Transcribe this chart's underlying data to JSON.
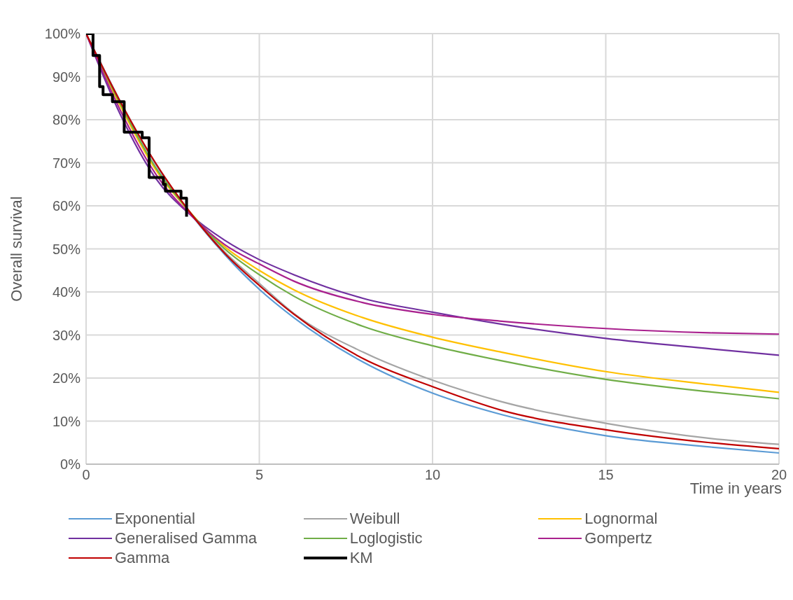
{
  "chart_data": {
    "type": "line",
    "xlabel": "Time in years",
    "ylabel": "Overall survival",
    "x": [
      0,
      1,
      2,
      3,
      4,
      5,
      6,
      8,
      10,
      12,
      15,
      18,
      20
    ],
    "series": [
      {
        "name": "Exponential",
        "color": "#5b9bd5",
        "values": [
          100,
          null,
          69.8,
          null,
          48.7,
          40.6,
          34,
          23.7,
          16.5,
          11.5,
          6.6,
          4,
          2.6
        ]
      },
      {
        "name": "Weibull",
        "color": "#a5a5a5",
        "values": [
          100,
          84,
          70,
          58.5,
          49.3,
          42,
          35,
          26,
          19.5,
          14.5,
          9.5,
          6,
          4.6
        ]
      },
      {
        "name": "Lognormal",
        "color": "#ffc000",
        "values": [
          100,
          83,
          68.5,
          58.5,
          50.5,
          45,
          40.5,
          34,
          29.5,
          26,
          21.5,
          18.5,
          16.7
        ]
      },
      {
        "name": "Generalised Gamma",
        "color": "#7030a0",
        "values": [
          100,
          81,
          66.5,
          58,
          52,
          47.5,
          44,
          38.5,
          35.3,
          32.5,
          29.2,
          26.8,
          25.3
        ]
      },
      {
        "name": "Loglogistic",
        "color": "#70ad47",
        "values": [
          100,
          83.5,
          69,
          58.5,
          50,
          44,
          39,
          32,
          27.5,
          24,
          19.7,
          16.8,
          15.2
        ]
      },
      {
        "name": "Gompertz",
        "color": "#a9218e",
        "values": [
          100,
          82,
          67.5,
          58,
          51,
          46.5,
          42.5,
          37.5,
          34.8,
          33.2,
          31.5,
          30.5,
          30.2
        ]
      },
      {
        "name": "Gamma",
        "color": "#c00000",
        "values": [
          100,
          84,
          70,
          58.5,
          49,
          41.5,
          34.8,
          24.5,
          18,
          12.5,
          8,
          5,
          3.6
        ]
      },
      {
        "name": "KM",
        "type": "step",
        "color": "#000000",
        "x": [
          0,
          0.2,
          0.39,
          0.49,
          0.76,
          1.1,
          1.62,
          1.82,
          2.23,
          2.29,
          2.74,
          2.9
        ],
        "values": [
          100,
          94.9,
          87.7,
          85.8,
          84.2,
          77.1,
          75.8,
          66.6,
          65,
          63.4,
          61.8,
          57.5
        ]
      }
    ],
    "xlim": [
      0,
      20
    ],
    "xticks": [
      0,
      5,
      10,
      15,
      20
    ],
    "ylim": [
      0,
      100
    ],
    "yticks": [
      {
        "value": 0,
        "label": "0%"
      },
      {
        "value": 10,
        "label": "10%"
      },
      {
        "value": 20,
        "label": "20%"
      },
      {
        "value": 30,
        "label": "30%"
      },
      {
        "value": 40,
        "label": "40%"
      },
      {
        "value": 50,
        "label": "50%"
      },
      {
        "value": 60,
        "label": "60%"
      },
      {
        "value": 70,
        "label": "70%"
      },
      {
        "value": 80,
        "label": "80%"
      },
      {
        "value": 90,
        "label": "90%"
      },
      {
        "value": 100,
        "label": "100%"
      }
    ],
    "grid": true,
    "legend": "bottom",
    "marker": "none"
  }
}
